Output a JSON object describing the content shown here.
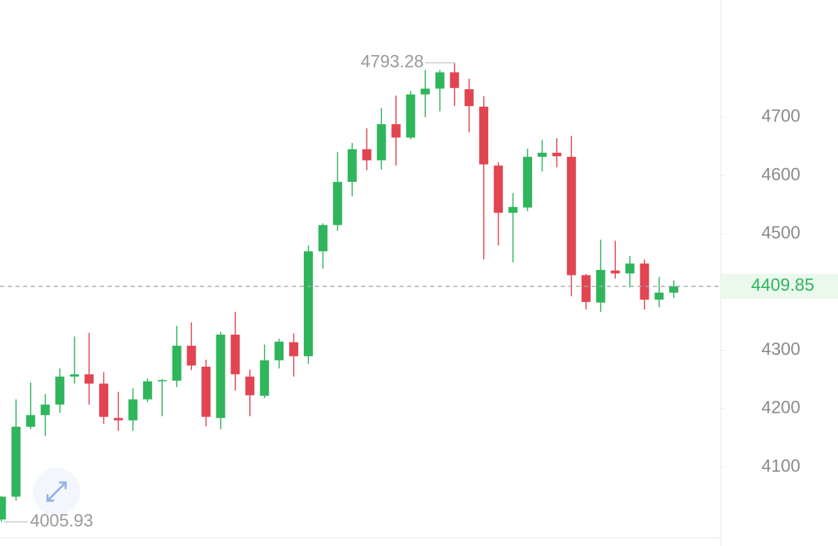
{
  "chart_data": {
    "type": "candlestick",
    "open": [
      4010,
      4049,
      4169,
      4189,
      4207,
      4255,
      4259,
      4243,
      4184,
      4180,
      4216,
      4247,
      4248,
      4308,
      4272,
      4184,
      4327,
      4255,
      4222,
      4283,
      4314,
      4290,
      4470,
      4515,
      4589,
      4645,
      4626,
      4688,
      4665,
      4739,
      4749,
      4777,
      4748,
      4718,
      4617,
      4536,
      4545,
      4632,
      4639,
      4632,
      4429,
      4382,
      4437,
      4432,
      4449,
      4387,
      4399
    ],
    "high": [
      4050,
      4216,
      4245,
      4225,
      4269,
      4324,
      4330,
      4263,
      4229,
      4235,
      4252,
      4251,
      4342,
      4348,
      4284,
      4332,
      4366,
      4267,
      4310,
      4320,
      4329,
      4480,
      4518,
      4640,
      4656,
      4681,
      4716,
      4737,
      4745,
      4781,
      4781,
      4793.28,
      4766,
      4736,
      4623,
      4570,
      4646,
      4661,
      4664,
      4668,
      4431,
      4490,
      4488,
      4462,
      4456,
      4426,
      4420
    ],
    "low": [
      4005.93,
      4042,
      4165,
      4153,
      4193,
      4243,
      4207,
      4174,
      4162,
      4162,
      4211,
      4187,
      4237,
      4266,
      4170,
      4165,
      4231,
      4187,
      4218,
      4269,
      4255,
      4277,
      4440,
      4505,
      4564,
      4609,
      4610,
      4617,
      4662,
      4700,
      4710,
      4719,
      4674,
      4456,
      4480,
      4451,
      4539,
      4607,
      4614,
      4393,
      4370,
      4366,
      4423,
      4408,
      4370,
      4374,
      4390
    ],
    "close": [
      4049,
      4169,
      4189,
      4207,
      4255,
      4259,
      4243,
      4186,
      4180,
      4216,
      4247,
      4249,
      4308,
      4274,
      4186,
      4327,
      4259,
      4223,
      4283,
      4315,
      4290,
      4470,
      4515,
      4589,
      4645,
      4626,
      4688,
      4665,
      4739,
      4749,
      4777,
      4750,
      4719,
      4619,
      4536,
      4546,
      4632,
      4639,
      4633,
      4429,
      4383,
      4438,
      4432,
      4449,
      4387,
      4399,
      4409.85
    ],
    "up_color": "#2fb65c",
    "down_color": "#e24552",
    "ylim": [
      3980,
      4901
    ],
    "yticks": [
      4100,
      4200,
      4300,
      4500,
      4600,
      4700
    ],
    "grid": false
  }
}
